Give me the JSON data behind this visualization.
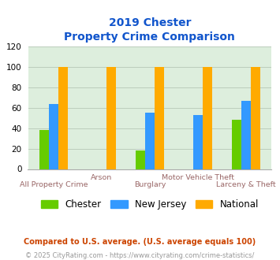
{
  "title_line1": "2019 Chester",
  "title_line2": "Property Crime Comparison",
  "categories": [
    "All Property Crime",
    "Arson",
    "Burglary",
    "Motor Vehicle Theft",
    "Larceny & Theft"
  ],
  "series": {
    "Chester": [
      38,
      0,
      18,
      0,
      48
    ],
    "New Jersey": [
      64,
      0,
      55,
      53,
      67
    ],
    "National": [
      100,
      100,
      100,
      100,
      100
    ]
  },
  "bar_colors": {
    "Chester": "#66cc00",
    "New Jersey": "#3399ff",
    "National": "#ffaa00"
  },
  "ylim": [
    0,
    120
  ],
  "yticks": [
    0,
    20,
    40,
    60,
    80,
    100,
    120
  ],
  "grid_color": "#bbccbb",
  "bg_color": "#ddeedd",
  "title_color": "#1155cc",
  "xlabel_color_odd": "#996666",
  "xlabel_color_even": "#996666",
  "legend_fontsize": 8,
  "footnote1": "Compared to U.S. average. (U.S. average equals 100)",
  "footnote2": "© 2025 CityRating.com - https://www.cityrating.com/crime-statistics/",
  "footnote1_color": "#cc4400",
  "footnote2_color": "#999999"
}
